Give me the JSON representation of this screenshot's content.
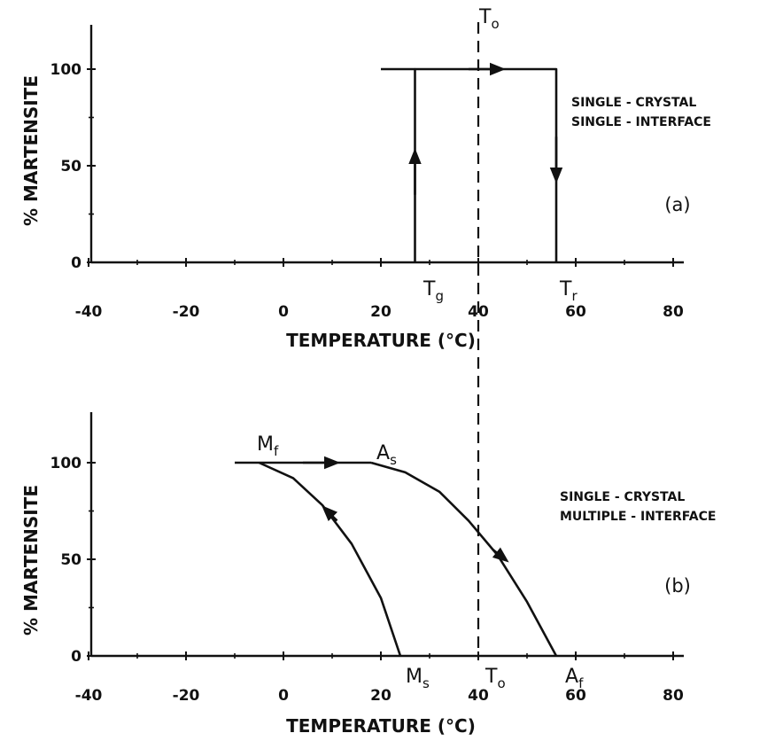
{
  "chart_data": [
    {
      "type": "line",
      "panel_label": "(a)",
      "annotation_lines": [
        "SINGLE - CRYSTAL",
        "SINGLE - INTERFACE"
      ],
      "ylabel": "% MARTENSITE",
      "xlabel": "TEMPERATURE   (°C)",
      "xlim": [
        -40,
        80
      ],
      "ylim": [
        0,
        100
      ],
      "x_ticks": [
        -40,
        -20,
        0,
        20,
        40,
        60,
        80
      ],
      "y_ticks": [
        0,
        50,
        100
      ],
      "series": [
        {
          "x": [
            27,
            27,
            56,
            56
          ],
          "y": [
            0,
            100,
            100,
            0
          ]
        },
        {
          "x": [
            20,
            27
          ],
          "y": [
            100,
            100
          ]
        }
      ],
      "markers": [
        {
          "main": "T",
          "sub": "g",
          "x": 27
        },
        {
          "main": "T",
          "sub": "r",
          "x": 56
        },
        {
          "main": "T",
          "sub": "o",
          "x": 40
        }
      ],
      "dashed_line_x": 40
    },
    {
      "type": "line",
      "panel_label": "(b)",
      "annotation_lines": [
        "SINGLE - CRYSTAL",
        "MULTIPLE - INTERFACE"
      ],
      "ylabel": "% MARTENSITE",
      "xlabel": "TEMPERATURE   (°C)",
      "xlim": [
        -40,
        80
      ],
      "ylim": [
        0,
        100
      ],
      "x_ticks": [
        -40,
        -20,
        0,
        20,
        40,
        60,
        80
      ],
      "y_ticks": [
        0,
        50,
        100
      ],
      "series": [
        {
          "x": [
            24,
            20,
            14,
            8,
            2,
            -5
          ],
          "y": [
            0,
            30,
            58,
            78,
            92,
            100
          ]
        },
        {
          "x": [
            -10,
            -5,
            18
          ],
          "y": [
            100,
            100,
            100
          ]
        },
        {
          "x": [
            18,
            25,
            32,
            38,
            44,
            50,
            56
          ],
          "y": [
            100,
            95,
            85,
            70,
            52,
            28,
            0
          ]
        }
      ],
      "markers": [
        {
          "main": "M",
          "sub": "f",
          "x": -5
        },
        {
          "main": "A",
          "sub": "s",
          "x": 18
        },
        {
          "main": "M",
          "sub": "s",
          "x": 24
        },
        {
          "main": "T",
          "sub": "o",
          "x": 40
        },
        {
          "main": "A",
          "sub": "f",
          "x": 56
        }
      ],
      "dashed_line_x": 40
    }
  ]
}
